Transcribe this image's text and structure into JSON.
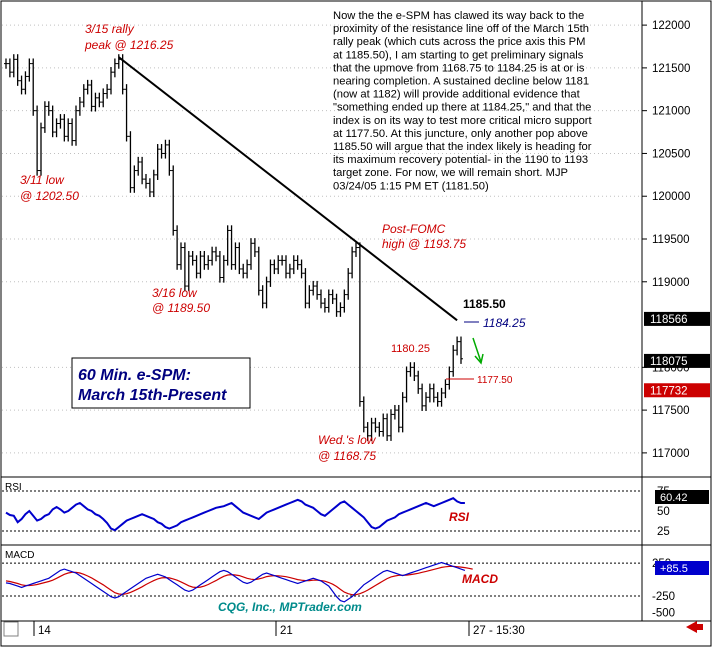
{
  "chart_data": [
    {
      "type": "line",
      "panel": "price",
      "title_lines": [
        "60 Min. e-SPM:",
        "March 15th-Present"
      ],
      "y_ticks": [
        "122000",
        "121500",
        "121000",
        "120500",
        "120000",
        "119500",
        "119000",
        "118000",
        "117500",
        "117000"
      ],
      "ylim": [
        116800,
        122200
      ],
      "price_tags": [
        {
          "label": "118566",
          "value": 118566,
          "bg": "#000000",
          "fg": "#ffffff"
        },
        {
          "label": "118075",
          "value": 118075,
          "bg": "#000000",
          "fg": "#ffffff"
        },
        {
          "label": "117732",
          "value": 117732,
          "bg": "#cc0000",
          "fg": "#ffffff"
        }
      ],
      "commentary": [
        "Now the the e-SPM has clawed its way back to the",
        "proximity of the resistance line off of the March 15th",
        "rally peak (which cuts across the price axis this PM",
        "at 1185.50), I am starting to get preliminary signals",
        "that the upmove from 1168.75 to 1184.25 is at or is",
        "nearing completion. A sustained decline below 1181",
        "(now at 1182) will provide additional evidence that",
        "\"something ended up there at 1184.25,\" and that the",
        "index is on its way to test more critical micro support",
        "at 1177.50. At this juncture,  only another pop above",
        "1185.50 will argue that the index likely is heading for",
        "its maximum recovery potential- in the 1190 to 1193",
        "target zone. For now, we will remain short. MJP",
        "03/24/05  1:15 PM ET  (1181.50)"
      ],
      "annotations": {
        "rally_peak": [
          "3/15 rally",
          "peak @ 1216.25"
        ],
        "low_311": [
          "3/11 low",
          "@ 1202.50"
        ],
        "low_316": [
          "3/16 low",
          "@ 1189.50"
        ],
        "post_fomc": [
          "Post-FOMC",
          "high @ 1193.75"
        ],
        "wed_low": [
          "Wed.'s low",
          "@ 1168.75"
        ],
        "level_1185": "1185.50",
        "level_1184": "1184.25",
        "level_1180": "1180.25",
        "level_1177": "1177.50"
      },
      "series": [
        {
          "values": [
            121550,
            121450,
            121600,
            121350,
            121250,
            121400,
            121550,
            121000,
            120300,
            120800,
            121050,
            121000,
            120750,
            120850,
            120900,
            120700,
            120850,
            120650,
            121000,
            121100,
            121250,
            121300,
            121050,
            121150,
            121100,
            121200,
            121250,
            121450,
            121550,
            121600,
            121250,
            120700,
            120100,
            120300,
            120400,
            120200,
            120150,
            120050,
            120250,
            120550,
            120500,
            120600,
            120300,
            119600,
            119200,
            119400,
            118950,
            119300,
            119250,
            119100,
            119300,
            119200,
            119250,
            119350,
            119300,
            119050,
            119250,
            119600,
            119200,
            119400,
            119150,
            119100,
            119200,
            119450,
            119350,
            118900,
            118750,
            119000,
            119200,
            119150,
            119250,
            119250,
            119100,
            119150,
            119250,
            119200,
            119100,
            118750,
            118900,
            118950,
            118850,
            118750,
            118700,
            118850,
            118800,
            118650,
            118700,
            118850,
            119100,
            119350,
            119400,
            117600,
            117300,
            117200,
            117350,
            117300,
            117250,
            117400,
            117200,
            117450,
            117500,
            117300,
            117650,
            117950,
            118000,
            117900,
            117750,
            117550,
            117650,
            117750,
            117650,
            117600,
            117700,
            117800,
            117950,
            118200,
            118300,
            118100
          ]
        }
      ],
      "resistance_line": {
        "from_bar": 29,
        "from_value": 121625,
        "to_bar": 116,
        "to_value": 118550
      }
    },
    {
      "type": "line",
      "panel": "RSI",
      "label": "RSI",
      "series_label": "RSI",
      "value_tag": "60.42",
      "y_ticks": [
        "75",
        "50",
        "25"
      ],
      "ylim": [
        10,
        90
      ],
      "reference_levels": [
        75,
        25
      ],
      "series": [
        {
          "values": [
            48,
            45,
            44,
            36,
            40,
            46,
            50,
            44,
            38,
            40,
            44,
            46,
            52,
            55,
            52,
            48,
            50,
            54,
            58,
            60,
            56,
            52,
            50,
            46,
            44,
            40,
            35,
            28,
            26,
            30,
            34,
            38,
            40,
            42,
            44,
            46,
            44,
            42,
            40,
            36,
            34,
            30,
            28,
            30,
            32,
            36,
            38,
            40,
            42,
            44,
            46,
            48,
            50,
            52,
            54,
            55,
            56,
            58,
            60,
            56,
            52,
            48,
            46,
            44,
            42,
            40,
            44,
            48,
            50,
            52,
            54,
            56,
            58,
            60,
            62,
            64,
            62,
            58,
            56,
            54,
            50,
            46,
            44,
            48,
            52,
            56,
            60,
            62,
            58,
            54,
            50,
            46,
            42,
            36,
            30,
            28,
            30,
            34,
            38,
            40,
            42,
            46,
            48,
            50,
            52,
            54,
            56,
            58,
            60,
            58,
            56,
            58,
            60,
            62,
            64,
            66,
            62,
            60,
            60
          ]
        }
      ]
    },
    {
      "type": "line",
      "panel": "MACD",
      "label": "MACD",
      "series_label": "MACD",
      "value_tag": "+85.5",
      "y_ticks": [
        "250",
        "-250",
        "-500"
      ],
      "ylim": [
        -600,
        450
      ],
      "series": [
        {
          "name": "MACD",
          "color": "#0000cc",
          "values": [
            -50,
            -60,
            -80,
            -100,
            -120,
            -100,
            -80,
            -60,
            -40,
            -20,
            0,
            20,
            60,
            100,
            140,
            160,
            140,
            120,
            100,
            60,
            20,
            -20,
            -60,
            -100,
            -140,
            -180,
            -220,
            -260,
            -280,
            -260,
            -220,
            -180,
            -140,
            -100,
            -60,
            -20,
            20,
            40,
            60,
            80,
            60,
            40,
            0,
            -40,
            -80,
            -120,
            -160,
            -180,
            -160,
            -120,
            -80,
            -40,
            0,
            40,
            80,
            120,
            140,
            120,
            80,
            40,
            0,
            -40,
            -60,
            -40,
            0,
            40,
            80,
            100,
            80,
            60,
            40,
            20,
            0,
            -20,
            -40,
            -60,
            -40,
            -20,
            0,
            20,
            0,
            -20,
            -60,
            -100,
            -180,
            -260,
            -320,
            -340,
            -300,
            -260,
            -200,
            -140,
            -80,
            -40,
            0,
            40,
            80,
            120,
            140,
            120,
            100,
            80,
            60,
            80,
            100,
            120,
            140,
            160,
            180,
            200,
            220,
            240,
            260,
            240,
            220,
            200,
            180,
            160,
            140
          ]
        },
        {
          "name": "Signal",
          "color": "#cc0000",
          "values": [
            -20,
            -30,
            -45,
            -60,
            -80,
            -90,
            -90,
            -85,
            -75,
            -60,
            -45,
            -30,
            -10,
            20,
            50,
            80,
            100,
            110,
            110,
            100,
            80,
            55,
            25,
            -10,
            -45,
            -80,
            -120,
            -160,
            -200,
            -220,
            -225,
            -215,
            -195,
            -170,
            -140,
            -110,
            -75,
            -45,
            -15,
            10,
            25,
            30,
            25,
            10,
            -10,
            -35,
            -65,
            -95,
            -115,
            -120,
            -115,
            -100,
            -75,
            -45,
            -15,
            20,
            50,
            70,
            75,
            70,
            60,
            40,
            20,
            5,
            0,
            10,
            25,
            45,
            55,
            60,
            58,
            52,
            44,
            30,
            15,
            0,
            -10,
            -15,
            -15,
            -10,
            -10,
            -15,
            -25,
            -45,
            -70,
            -105,
            -150,
            -190,
            -215,
            -230,
            -230,
            -215,
            -190,
            -160,
            -125,
            -90,
            -55,
            -20,
            15,
            40,
            55,
            65,
            65,
            68,
            75,
            85,
            95,
            110,
            125,
            140,
            155,
            170,
            185,
            195,
            200,
            200,
            196,
            190,
            182,
            172,
            160
          ]
        }
      ]
    }
  ],
  "x_axis": {
    "ticks": [
      {
        "bar": 2,
        "label": "14"
      },
      {
        "bar": 60,
        "label": "21"
      },
      {
        "bar": 113,
        "label": "27 - 15:30"
      }
    ]
  },
  "watermark": "CQG, Inc., MPTrader.com",
  "panel_labels": {
    "rsi": "RSI",
    "macd": "MACD"
  },
  "colors": {
    "price": "#000000",
    "rsi": "#0000cc",
    "macd": "#0000cc",
    "signal": "#cc0000",
    "annotation": "#cc0000",
    "title": "#000080",
    "watermark": "#008b8b"
  }
}
